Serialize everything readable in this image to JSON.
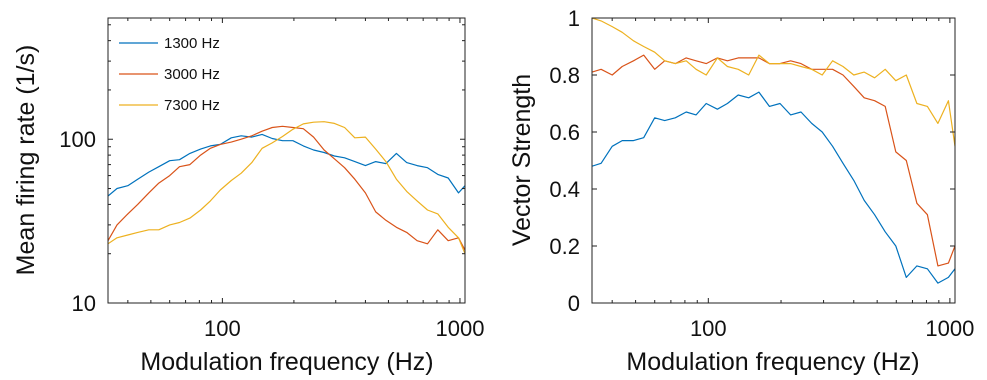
{
  "colors": {
    "s1300": "#0072BD",
    "s3000": "#D95319",
    "s7300": "#EDB120"
  },
  "chart_data": [
    {
      "type": "line",
      "xscale": "log",
      "yscale": "log",
      "xlim": [
        33,
        1050
      ],
      "ylim": [
        10,
        550
      ],
      "xticks": [
        {
          "value": 100,
          "label": "100"
        },
        {
          "value": 1000,
          "label": "1000"
        }
      ],
      "yticks": [
        {
          "value": 10,
          "label": "10"
        },
        {
          "value": 100,
          "label": "100"
        }
      ],
      "xlabel": "Modulation frequency (Hz)",
      "ylabel": "Mean firing rate (1/s)",
      "legend_position": "top-left",
      "x": [
        33,
        36,
        40,
        44,
        49,
        54,
        60,
        66,
        73,
        81,
        89,
        98,
        109,
        120,
        133,
        147,
        162,
        179,
        198,
        219,
        242,
        268,
        296,
        327,
        361,
        400,
        442,
        488,
        540,
        597,
        660,
        730,
        807,
        892,
        986,
        1050
      ],
      "series": [
        {
          "name": "1300 Hz",
          "color_key": "s1300",
          "values": [
            45,
            50,
            52,
            57,
            63,
            68,
            74,
            75,
            82,
            87,
            91,
            93,
            102,
            105,
            103,
            107,
            101,
            98,
            98,
            91,
            86,
            83,
            79,
            77,
            73,
            69,
            73,
            71,
            82,
            72,
            69,
            67,
            61,
            58,
            47,
            52
          ]
        },
        {
          "name": "3000 Hz",
          "color_key": "s3000",
          "values": [
            24,
            30,
            35,
            40,
            47,
            54,
            60,
            68,
            70,
            80,
            88,
            93,
            96,
            100,
            105,
            112,
            118,
            120,
            118,
            116,
            103,
            86,
            76,
            67,
            57,
            47,
            36,
            32,
            29,
            27,
            24,
            23,
            28,
            24,
            25,
            21
          ]
        },
        {
          "name": "7300 Hz",
          "color_key": "s7300",
          "values": [
            23,
            25,
            26,
            27,
            28,
            28,
            30,
            31,
            33,
            37,
            42,
            49,
            56,
            62,
            72,
            88,
            95,
            104,
            115,
            124,
            127,
            128,
            125,
            118,
            102,
            103,
            87,
            73,
            57,
            48,
            42,
            37,
            35,
            29,
            25,
            20
          ]
        }
      ]
    },
    {
      "type": "line",
      "xscale": "log",
      "yscale": "linear",
      "xlim": [
        33,
        1050
      ],
      "ylim": [
        0,
        1
      ],
      "xticks": [
        {
          "value": 100,
          "label": "100"
        },
        {
          "value": 1000,
          "label": "1000"
        }
      ],
      "yticks": [
        {
          "value": 0,
          "label": "0"
        },
        {
          "value": 0.2,
          "label": "0.2"
        },
        {
          "value": 0.4,
          "label": "0.4"
        },
        {
          "value": 0.6,
          "label": "0.6"
        },
        {
          "value": 0.8,
          "label": "0.8"
        },
        {
          "value": 1,
          "label": "1"
        }
      ],
      "xlabel": "Modulation frequency (Hz)",
      "ylabel": "Vector Strength",
      "x": [
        33,
        36,
        40,
        44,
        49,
        54,
        60,
        66,
        73,
        81,
        89,
        98,
        109,
        120,
        133,
        147,
        162,
        179,
        198,
        219,
        242,
        268,
        296,
        327,
        361,
        400,
        442,
        488,
        540,
        597,
        660,
        730,
        807,
        892,
        986,
        1050
      ],
      "series": [
        {
          "name": "1300 Hz",
          "color_key": "s1300",
          "values": [
            0.48,
            0.49,
            0.55,
            0.57,
            0.57,
            0.58,
            0.65,
            0.64,
            0.65,
            0.67,
            0.66,
            0.7,
            0.68,
            0.7,
            0.73,
            0.72,
            0.74,
            0.69,
            0.7,
            0.66,
            0.67,
            0.63,
            0.6,
            0.55,
            0.49,
            0.43,
            0.36,
            0.31,
            0.25,
            0.2,
            0.09,
            0.13,
            0.12,
            0.07,
            0.09,
            0.12
          ]
        },
        {
          "name": "3000 Hz",
          "color_key": "s3000",
          "values": [
            0.81,
            0.82,
            0.8,
            0.83,
            0.85,
            0.87,
            0.82,
            0.85,
            0.84,
            0.86,
            0.85,
            0.84,
            0.86,
            0.85,
            0.86,
            0.86,
            0.86,
            0.84,
            0.84,
            0.85,
            0.84,
            0.82,
            0.82,
            0.82,
            0.8,
            0.76,
            0.72,
            0.71,
            0.69,
            0.53,
            0.5,
            0.35,
            0.31,
            0.13,
            0.14,
            0.2
          ]
        },
        {
          "name": "7300 Hz",
          "color_key": "s7300",
          "values": [
            1,
            0.99,
            0.97,
            0.95,
            0.92,
            0.9,
            0.88,
            0.85,
            0.84,
            0.85,
            0.82,
            0.8,
            0.86,
            0.83,
            0.82,
            0.8,
            0.87,
            0.84,
            0.84,
            0.84,
            0.83,
            0.82,
            0.8,
            0.85,
            0.83,
            0.8,
            0.81,
            0.79,
            0.82,
            0.78,
            0.8,
            0.7,
            0.69,
            0.63,
            0.71,
            0.55
          ]
        }
      ]
    }
  ]
}
